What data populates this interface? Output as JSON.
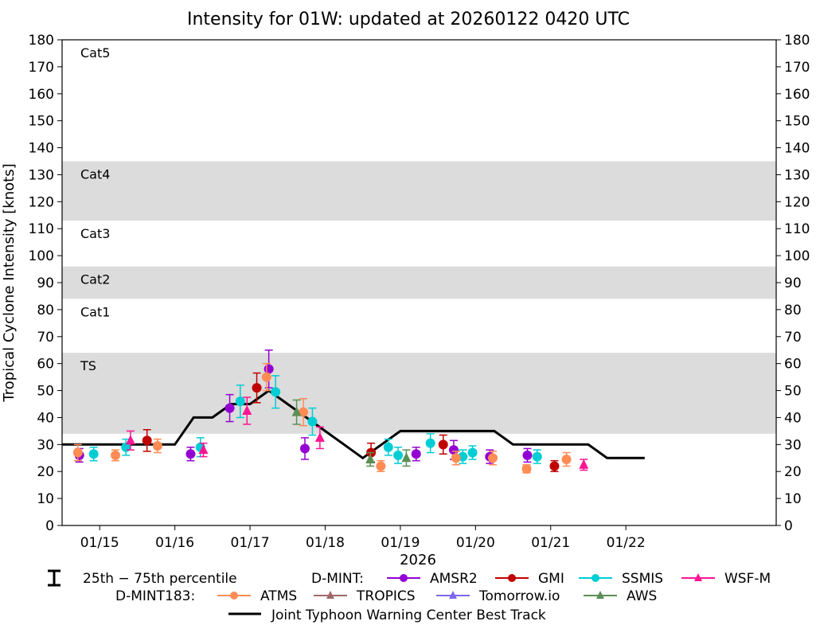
{
  "chart_data": {
    "type": "scatter",
    "title": "Intensity for 01W: updated at 20260122 0420 UTC",
    "ylabel": "Tropical Cyclone Intensity [knots]",
    "xlabel": "2026",
    "ylim": [
      0,
      180
    ],
    "xlim": [
      0,
      9.5
    ],
    "yticks": [
      0,
      10,
      20,
      30,
      40,
      50,
      60,
      70,
      80,
      90,
      100,
      110,
      120,
      130,
      140,
      150,
      160,
      170,
      180
    ],
    "xticks": [
      {
        "x": 0.5,
        "label": "01/15"
      },
      {
        "x": 1.5,
        "label": "01/16"
      },
      {
        "x": 2.5,
        "label": "01/17"
      },
      {
        "x": 3.5,
        "label": "01/18"
      },
      {
        "x": 4.5,
        "label": "01/19"
      },
      {
        "x": 5.5,
        "label": "01/20"
      },
      {
        "x": 6.5,
        "label": "01/21"
      },
      {
        "x": 7.5,
        "label": "01/22"
      }
    ],
    "bands": [
      {
        "label": "TS",
        "from": 34,
        "to": 64,
        "shaded": true
      },
      {
        "label": "Cat1",
        "from": 64,
        "to": 84,
        "shaded": false
      },
      {
        "label": "Cat2",
        "from": 84,
        "to": 96,
        "shaded": true
      },
      {
        "label": "Cat3",
        "from": 96,
        "to": 113,
        "shaded": false
      },
      {
        "label": "Cat4",
        "from": 113,
        "to": 135,
        "shaded": true
      },
      {
        "label": "Cat5",
        "from": 135,
        "to": 180,
        "shaded": false
      }
    ],
    "colors": {
      "AMSR2": "#9400d3",
      "GMI": "#c00000",
      "SSMIS": "#00cdd4",
      "WSF-M": "#ff1493",
      "ATMS": "#ff8c55",
      "TROPICS": "#a0686a",
      "Tomorrow.io": "#7b68ee",
      "AWS": "#5a8f55",
      "best_track": "#000000",
      "band": "#dcdcdc"
    },
    "best_track": [
      {
        "x": 0.0,
        "y": 30
      },
      {
        "x": 1.5,
        "y": 30
      },
      {
        "x": 1.75,
        "y": 40
      },
      {
        "x": 2.0,
        "y": 40
      },
      {
        "x": 2.25,
        "y": 45
      },
      {
        "x": 2.5,
        "y": 45
      },
      {
        "x": 2.75,
        "y": 50
      },
      {
        "x": 3.0,
        "y": 45
      },
      {
        "x": 3.25,
        "y": 40
      },
      {
        "x": 3.5,
        "y": 35
      },
      {
        "x": 3.75,
        "y": 30
      },
      {
        "x": 4.0,
        "y": 25
      },
      {
        "x": 4.25,
        "y": 30
      },
      {
        "x": 4.5,
        "y": 35
      },
      {
        "x": 5.75,
        "y": 35
      },
      {
        "x": 6.0,
        "y": 30
      },
      {
        "x": 7.0,
        "y": 30
      },
      {
        "x": 7.25,
        "y": 25
      },
      {
        "x": 7.75,
        "y": 25
      }
    ],
    "series": [
      {
        "name": "AMSR2",
        "marker": "circle",
        "points": [
          {
            "x": 0.23,
            "y": 26,
            "lo": 23.5,
            "hi": 28.5
          },
          {
            "x": 1.71,
            "y": 26.5,
            "lo": 24,
            "hi": 29
          },
          {
            "x": 2.23,
            "y": 43.5,
            "lo": 38.5,
            "hi": 48.5
          },
          {
            "x": 2.75,
            "y": 58,
            "lo": 51,
            "hi": 65
          },
          {
            "x": 3.23,
            "y": 28.5,
            "lo": 24.5,
            "hi": 32.5
          },
          {
            "x": 4.71,
            "y": 26.5,
            "lo": 24,
            "hi": 29
          },
          {
            "x": 5.21,
            "y": 28,
            "lo": 24.5,
            "hi": 31.5
          },
          {
            "x": 5.69,
            "y": 25.5,
            "lo": 23,
            "hi": 28
          },
          {
            "x": 6.19,
            "y": 26,
            "lo": 23.5,
            "hi": 28.5
          }
        ]
      },
      {
        "name": "GMI",
        "marker": "circle",
        "points": [
          {
            "x": 1.13,
            "y": 31.5,
            "lo": 27.5,
            "hi": 35.5
          },
          {
            "x": 2.59,
            "y": 51,
            "lo": 45.5,
            "hi": 56.5
          },
          {
            "x": 4.11,
            "y": 27,
            "lo": 23.5,
            "hi": 30.5
          },
          {
            "x": 5.07,
            "y": 30,
            "lo": 26.5,
            "hi": 33.5
          },
          {
            "x": 6.55,
            "y": 22,
            "lo": 20,
            "hi": 24
          }
        ]
      },
      {
        "name": "SSMIS",
        "marker": "circle",
        "points": [
          {
            "x": 0.42,
            "y": 26.5,
            "lo": 24,
            "hi": 29
          },
          {
            "x": 0.85,
            "y": 29,
            "lo": 26,
            "hi": 32
          },
          {
            "x": 1.84,
            "y": 29,
            "lo": 25.5,
            "hi": 32.5
          },
          {
            "x": 2.37,
            "y": 46,
            "lo": 40,
            "hi": 52
          },
          {
            "x": 2.84,
            "y": 49.5,
            "lo": 43.5,
            "hi": 55.5
          },
          {
            "x": 3.33,
            "y": 38.5,
            "lo": 33.5,
            "hi": 43.5
          },
          {
            "x": 4.34,
            "y": 29,
            "lo": 26,
            "hi": 32
          },
          {
            "x": 4.47,
            "y": 26,
            "lo": 23,
            "hi": 29
          },
          {
            "x": 4.9,
            "y": 30.5,
            "lo": 27,
            "hi": 34
          },
          {
            "x": 5.33,
            "y": 25.5,
            "lo": 23,
            "hi": 28
          },
          {
            "x": 5.46,
            "y": 27,
            "lo": 24.5,
            "hi": 29.5
          },
          {
            "x": 6.32,
            "y": 25.5,
            "lo": 23,
            "hi": 28
          }
        ]
      },
      {
        "name": "WSF-M",
        "marker": "triangle",
        "points": [
          {
            "x": 0.91,
            "y": 31.5,
            "lo": 28,
            "hi": 35
          },
          {
            "x": 1.88,
            "y": 28,
            "lo": 25.5,
            "hi": 30.5
          },
          {
            "x": 2.46,
            "y": 42.5,
            "lo": 37.5,
            "hi": 47.5
          },
          {
            "x": 3.43,
            "y": 32.5,
            "lo": 28.5,
            "hi": 36.5
          },
          {
            "x": 6.94,
            "y": 22.5,
            "lo": 20.5,
            "hi": 24.5
          }
        ]
      },
      {
        "name": "ATMS",
        "marker": "circle",
        "points": [
          {
            "x": 0.21,
            "y": 27,
            "lo": 24,
            "hi": 30
          },
          {
            "x": 0.71,
            "y": 26,
            "lo": 24,
            "hi": 28
          },
          {
            "x": 1.27,
            "y": 29.5,
            "lo": 27,
            "hi": 32
          },
          {
            "x": 2.72,
            "y": 55,
            "lo": 50,
            "hi": 60
          },
          {
            "x": 3.21,
            "y": 42,
            "lo": 37,
            "hi": 47
          },
          {
            "x": 4.24,
            "y": 22,
            "lo": 20,
            "hi": 24
          },
          {
            "x": 5.24,
            "y": 25,
            "lo": 22.5,
            "hi": 27.5
          },
          {
            "x": 5.73,
            "y": 25,
            "lo": 22.5,
            "hi": 27.5
          },
          {
            "x": 6.18,
            "y": 21,
            "lo": 19.5,
            "hi": 22.5
          },
          {
            "x": 6.71,
            "y": 24.5,
            "lo": 22,
            "hi": 27
          }
        ]
      },
      {
        "name": "TROPICS",
        "marker": "triangle",
        "points": []
      },
      {
        "name": "Tomorrow.io",
        "marker": "triangle",
        "points": []
      },
      {
        "name": "AWS",
        "marker": "triangle",
        "points": [
          {
            "x": 3.12,
            "y": 42,
            "lo": 37.5,
            "hi": 46.5
          },
          {
            "x": 4.1,
            "y": 24.5,
            "lo": 22,
            "hi": 27
          },
          {
            "x": 4.58,
            "y": 25,
            "lo": 22,
            "hi": 28
          }
        ]
      }
    ],
    "legend": {
      "percentile_label": "25th − 75th percentile",
      "dmint_label": "D-MINT:",
      "dmint183_label": "D-MINT183:",
      "dmint_items": [
        "AMSR2",
        "GMI",
        "SSMIS",
        "WSF-M"
      ],
      "dmint183_items": [
        "ATMS",
        "TROPICS",
        "Tomorrow.io",
        "AWS"
      ],
      "best_track_label": "Joint Typhoon Warning Center Best Track",
      "placement": "bottom"
    }
  }
}
